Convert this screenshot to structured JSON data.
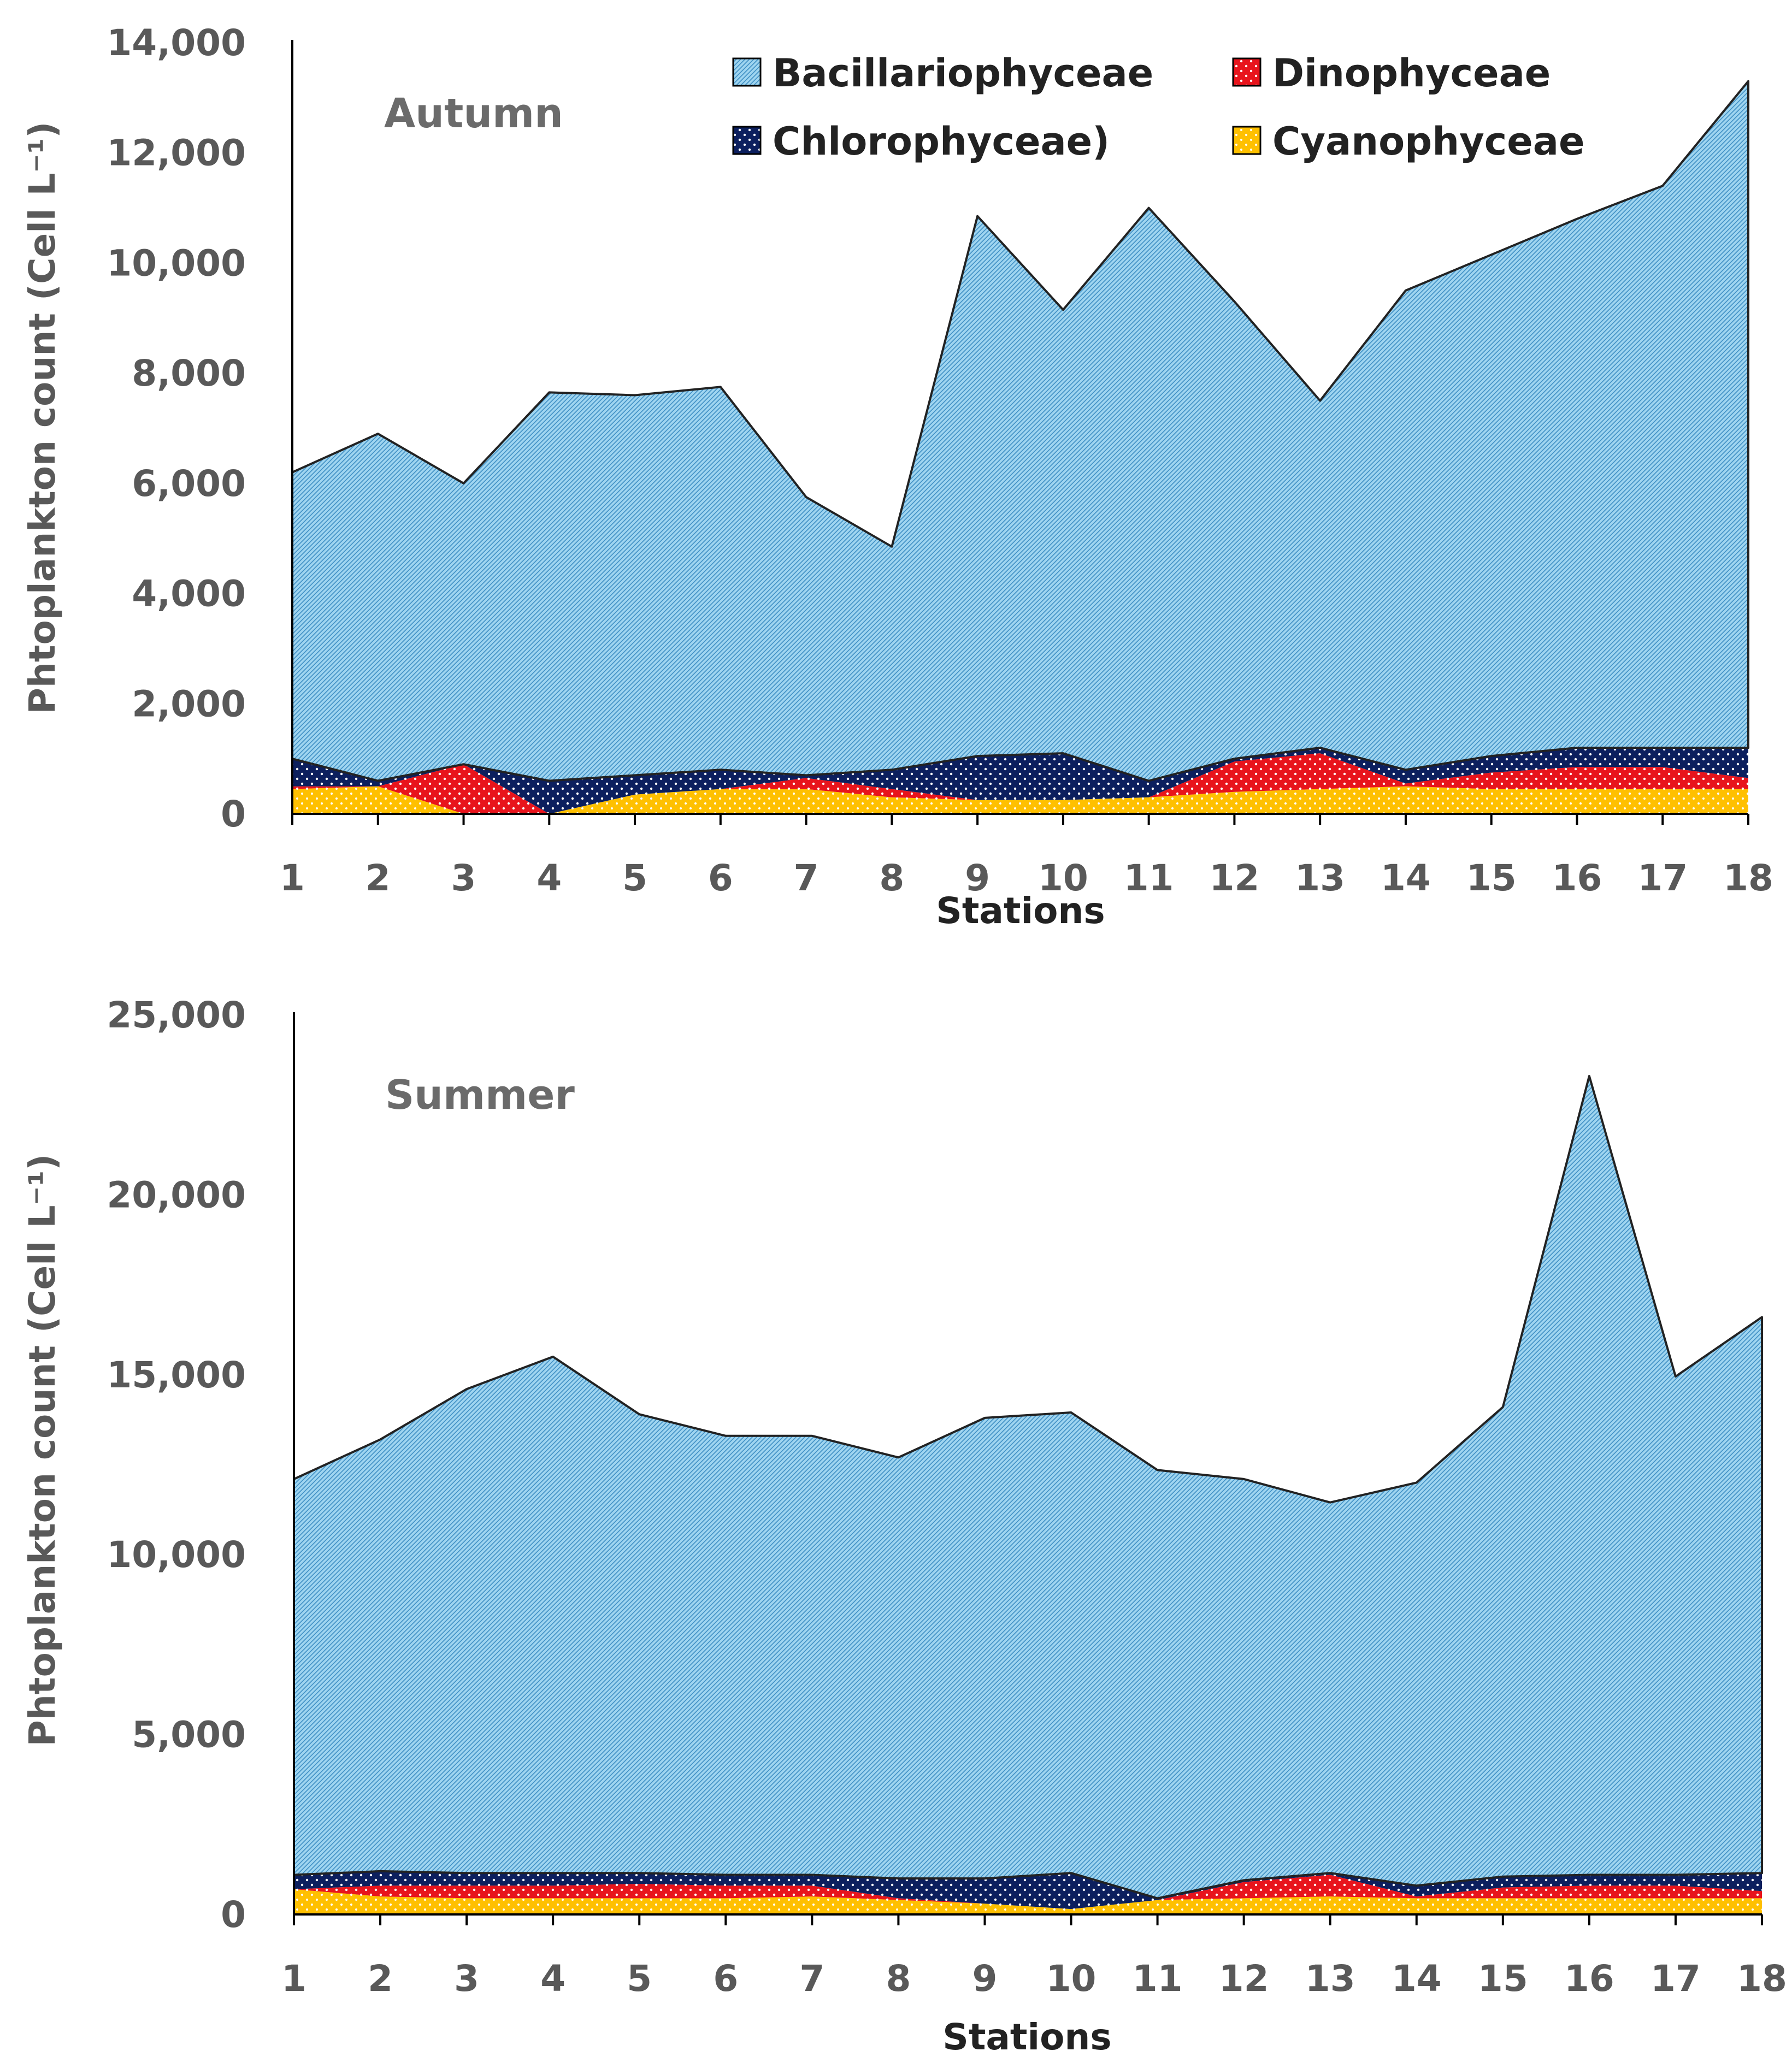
{
  "colors": {
    "bacillariophyceae": "#9fd5f0",
    "dinophyceae": "#e8141c",
    "chlorophyceae": "#0c1f5e",
    "cyanophyceae": "#ffc000",
    "axis": "#000000",
    "tick_text": "#595959",
    "title_text": "#6b6b6b"
  },
  "legend": [
    {
      "name": "Bacillariophyceae",
      "key": "bacillariophyceae",
      "icon": "hatched-square-icon"
    },
    {
      "name": "Dinophyceae",
      "key": "dinophyceae",
      "icon": "dotted-square-icon"
    },
    {
      "name": "Chlorophyceae)",
      "key": "chlorophyceae",
      "icon": "dotted-square-icon"
    },
    {
      "name": "Cyanophyceae",
      "key": "cyanophyceae",
      "icon": "dotted-square-icon"
    }
  ],
  "chart_data": [
    {
      "type": "area",
      "panel_title": "Autumn",
      "xlabel": "Stations",
      "ylabel": "Phtoplankton count (Cell L⁻¹)",
      "ylim": [
        0,
        14000
      ],
      "yticks": [
        0,
        2000,
        4000,
        6000,
        8000,
        10000,
        12000,
        14000
      ],
      "ytick_labels": [
        "0",
        "2,000",
        "4,000",
        "6,000",
        "8,000",
        "10,000",
        "12,000",
        "14,000"
      ],
      "categories": [
        "1",
        "2",
        "3",
        "4",
        "5",
        "6",
        "7",
        "8",
        "9",
        "10",
        "11",
        "12",
        "13",
        "14",
        "15",
        "16",
        "17",
        "18"
      ],
      "series": [
        {
          "name": "Cyanophyceae",
          "key": "cyanophyceae",
          "values": [
            450,
            500,
            0,
            0,
            350,
            450,
            450,
            300,
            250,
            250,
            300,
            400,
            450,
            500,
            450,
            450,
            450,
            450
          ]
        },
        {
          "name": "Dinophyceae",
          "key": "dinophyceae",
          "values": [
            50,
            0,
            900,
            0,
            0,
            0,
            200,
            150,
            0,
            0,
            0,
            550,
            650,
            50,
            300,
            400,
            400,
            200
          ]
        },
        {
          "name": "Chlorophyceae",
          "key": "chlorophyceae",
          "values": [
            500,
            100,
            0,
            600,
            350,
            350,
            50,
            350,
            800,
            850,
            300,
            50,
            100,
            250,
            300,
            350,
            350,
            550
          ]
        },
        {
          "name": "Bacillariophyceae",
          "key": "bacillariophyceae",
          "values": [
            5200,
            6300,
            5100,
            7050,
            6900,
            6950,
            5050,
            4050,
            9800,
            8050,
            10400,
            8300,
            6300,
            8700,
            9100,
            9600,
            10200,
            12100
          ]
        }
      ]
    },
    {
      "type": "area",
      "panel_title": "Summer",
      "xlabel": "Stations",
      "ylabel": "Phtoplankton count (Cell L⁻¹)",
      "ylim": [
        0,
        25000
      ],
      "yticks": [
        0,
        5000,
        10000,
        15000,
        20000,
        25000
      ],
      "ytick_labels": [
        "0",
        "5,000",
        "10,000",
        "15,000",
        "20,000",
        "25,000"
      ],
      "categories": [
        "1",
        "2",
        "3",
        "4",
        "5",
        "6",
        "7",
        "8",
        "9",
        "10",
        "11",
        "12",
        "13",
        "14",
        "15",
        "16",
        "17",
        "18"
      ],
      "series": [
        {
          "name": "Cyanophyceae",
          "key": "cyanophyceae",
          "values": [
            700,
            500,
            450,
            450,
            450,
            450,
            500,
            400,
            300,
            150,
            400,
            450,
            500,
            450,
            450,
            450,
            450,
            450
          ]
        },
        {
          "name": "Dinophyceae",
          "key": "dinophyceae",
          "values": [
            0,
            300,
            350,
            350,
            400,
            350,
            300,
            50,
            0,
            0,
            0,
            450,
            600,
            50,
            300,
            350,
            350,
            200
          ]
        },
        {
          "name": "Chlorophyceae",
          "key": "chlorophyceae",
          "values": [
            400,
            400,
            350,
            350,
            300,
            300,
            300,
            550,
            700,
            1000,
            50,
            50,
            50,
            300,
            300,
            300,
            300,
            500
          ]
        },
        {
          "name": "Bacillariophyceae",
          "key": "bacillariophyceae",
          "values": [
            11000,
            12000,
            13450,
            14350,
            12750,
            12200,
            12200,
            11700,
            12800,
            12800,
            11900,
            11150,
            10300,
            11200,
            13050,
            22200,
            13850,
            15450
          ]
        }
      ]
    }
  ]
}
